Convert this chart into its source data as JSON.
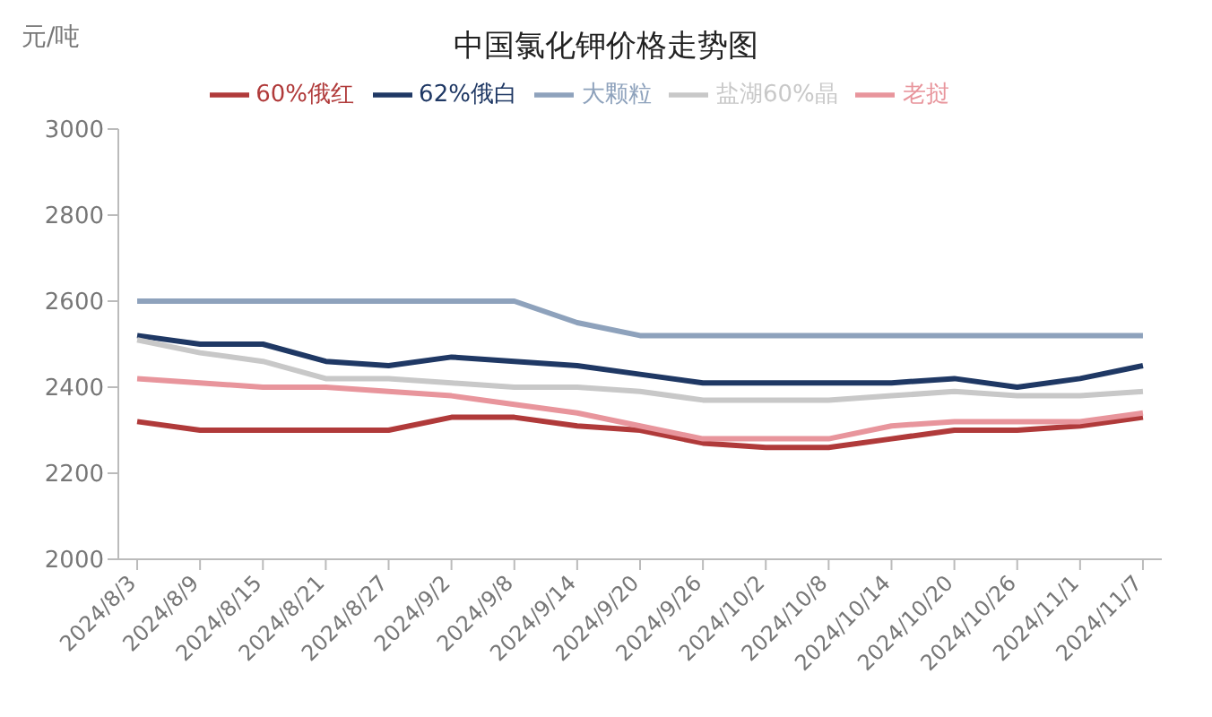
{
  "chart_data": {
    "type": "line",
    "title": "中国氯化钾价格走势图",
    "ylabel": "元/吨",
    "categories": [
      "2024/8/3",
      "2024/8/9",
      "2024/8/15",
      "2024/8/21",
      "2024/8/27",
      "2024/9/2",
      "2024/9/8",
      "2024/9/14",
      "2024/9/20",
      "2024/9/26",
      "2024/10/2",
      "2024/10/8",
      "2024/10/14",
      "2024/10/20",
      "2024/10/26",
      "2024/11/1",
      "2024/11/7"
    ],
    "series": [
      {
        "name": "60%俄红",
        "color": "#b03a3a",
        "values": [
          2320,
          2300,
          2300,
          2300,
          2300,
          2330,
          2330,
          2310,
          2300,
          2270,
          2260,
          2260,
          2280,
          2300,
          2300,
          2310,
          2330
        ]
      },
      {
        "name": "62%俄白",
        "color": "#1f3864",
        "values": [
          2520,
          2500,
          2500,
          2460,
          2450,
          2470,
          2460,
          2450,
          2430,
          2410,
          2410,
          2410,
          2410,
          2420,
          2400,
          2420,
          2450
        ]
      },
      {
        "name": "盐湖60%晶",
        "color": "#c8c8c8",
        "values": [
          2510,
          2480,
          2460,
          2420,
          2420,
          2410,
          2400,
          2400,
          2390,
          2370,
          2370,
          2370,
          2380,
          2390,
          2380,
          2380,
          2390
        ]
      },
      {
        "name": "大颗粒",
        "color": "#8ea2bc",
        "values": [
          2600,
          2600,
          2600,
          2600,
          2600,
          2600,
          2600,
          2550,
          2520,
          2520,
          2520,
          2520,
          2520,
          2520,
          2520,
          2520,
          2520
        ]
      },
      {
        "name": "老挝",
        "color": "#e8959c",
        "values": [
          2420,
          2410,
          2400,
          2400,
          2390,
          2380,
          2360,
          2340,
          2310,
          2280,
          2280,
          2280,
          2310,
          2320,
          2320,
          2320,
          2340
        ]
      }
    ],
    "ylim": [
      2000,
      3000
    ],
    "yticks": [
      2000,
      2200,
      2400,
      2600,
      2800,
      3000
    ],
    "legend": "top",
    "marker": "none",
    "line_style": "solid"
  }
}
